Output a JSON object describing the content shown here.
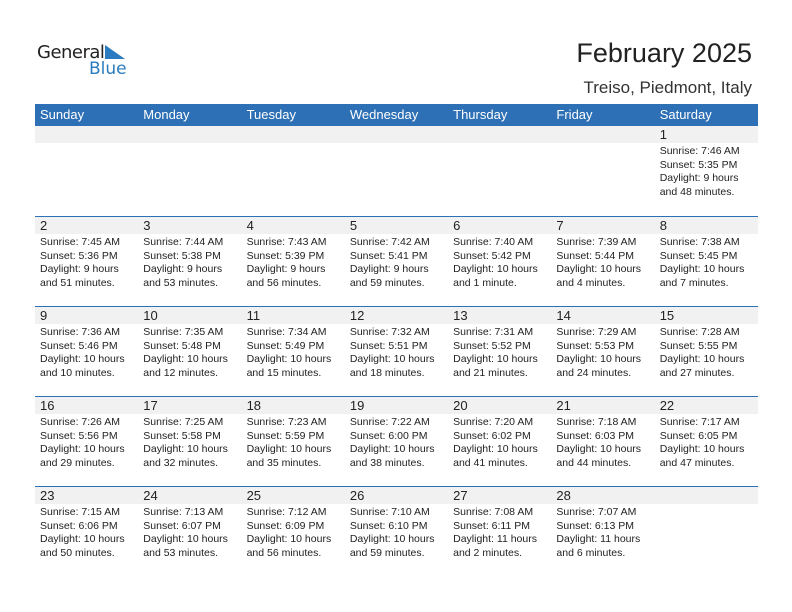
{
  "logo": {
    "word1": "General",
    "word2": "Blue"
  },
  "title": "February 2025",
  "location": "Treiso, Piedmont, Italy",
  "days": [
    "Sunday",
    "Monday",
    "Tuesday",
    "Wednesday",
    "Thursday",
    "Friday",
    "Saturday"
  ],
  "weeks": [
    [
      null,
      null,
      null,
      null,
      null,
      null,
      {
        "day": "1",
        "sunrise": "Sunrise: 7:46 AM",
        "sunset": "Sunset: 5:35 PM",
        "daylight1": "Daylight: 9 hours",
        "daylight2": "and 48 minutes."
      }
    ],
    [
      {
        "day": "2",
        "sunrise": "Sunrise: 7:45 AM",
        "sunset": "Sunset: 5:36 PM",
        "daylight1": "Daylight: 9 hours",
        "daylight2": "and 51 minutes."
      },
      {
        "day": "3",
        "sunrise": "Sunrise: 7:44 AM",
        "sunset": "Sunset: 5:38 PM",
        "daylight1": "Daylight: 9 hours",
        "daylight2": "and 53 minutes."
      },
      {
        "day": "4",
        "sunrise": "Sunrise: 7:43 AM",
        "sunset": "Sunset: 5:39 PM",
        "daylight1": "Daylight: 9 hours",
        "daylight2": "and 56 minutes."
      },
      {
        "day": "5",
        "sunrise": "Sunrise: 7:42 AM",
        "sunset": "Sunset: 5:41 PM",
        "daylight1": "Daylight: 9 hours",
        "daylight2": "and 59 minutes."
      },
      {
        "day": "6",
        "sunrise": "Sunrise: 7:40 AM",
        "sunset": "Sunset: 5:42 PM",
        "daylight1": "Daylight: 10 hours",
        "daylight2": "and 1 minute."
      },
      {
        "day": "7",
        "sunrise": "Sunrise: 7:39 AM",
        "sunset": "Sunset: 5:44 PM",
        "daylight1": "Daylight: 10 hours",
        "daylight2": "and 4 minutes."
      },
      {
        "day": "8",
        "sunrise": "Sunrise: 7:38 AM",
        "sunset": "Sunset: 5:45 PM",
        "daylight1": "Daylight: 10 hours",
        "daylight2": "and 7 minutes."
      }
    ],
    [
      {
        "day": "9",
        "sunrise": "Sunrise: 7:36 AM",
        "sunset": "Sunset: 5:46 PM",
        "daylight1": "Daylight: 10 hours",
        "daylight2": "and 10 minutes."
      },
      {
        "day": "10",
        "sunrise": "Sunrise: 7:35 AM",
        "sunset": "Sunset: 5:48 PM",
        "daylight1": "Daylight: 10 hours",
        "daylight2": "and 12 minutes."
      },
      {
        "day": "11",
        "sunrise": "Sunrise: 7:34 AM",
        "sunset": "Sunset: 5:49 PM",
        "daylight1": "Daylight: 10 hours",
        "daylight2": "and 15 minutes."
      },
      {
        "day": "12",
        "sunrise": "Sunrise: 7:32 AM",
        "sunset": "Sunset: 5:51 PM",
        "daylight1": "Daylight: 10 hours",
        "daylight2": "and 18 minutes."
      },
      {
        "day": "13",
        "sunrise": "Sunrise: 7:31 AM",
        "sunset": "Sunset: 5:52 PM",
        "daylight1": "Daylight: 10 hours",
        "daylight2": "and 21 minutes."
      },
      {
        "day": "14",
        "sunrise": "Sunrise: 7:29 AM",
        "sunset": "Sunset: 5:53 PM",
        "daylight1": "Daylight: 10 hours",
        "daylight2": "and 24 minutes."
      },
      {
        "day": "15",
        "sunrise": "Sunrise: 7:28 AM",
        "sunset": "Sunset: 5:55 PM",
        "daylight1": "Daylight: 10 hours",
        "daylight2": "and 27 minutes."
      }
    ],
    [
      {
        "day": "16",
        "sunrise": "Sunrise: 7:26 AM",
        "sunset": "Sunset: 5:56 PM",
        "daylight1": "Daylight: 10 hours",
        "daylight2": "and 29 minutes."
      },
      {
        "day": "17",
        "sunrise": "Sunrise: 7:25 AM",
        "sunset": "Sunset: 5:58 PM",
        "daylight1": "Daylight: 10 hours",
        "daylight2": "and 32 minutes."
      },
      {
        "day": "18",
        "sunrise": "Sunrise: 7:23 AM",
        "sunset": "Sunset: 5:59 PM",
        "daylight1": "Daylight: 10 hours",
        "daylight2": "and 35 minutes."
      },
      {
        "day": "19",
        "sunrise": "Sunrise: 7:22 AM",
        "sunset": "Sunset: 6:00 PM",
        "daylight1": "Daylight: 10 hours",
        "daylight2": "and 38 minutes."
      },
      {
        "day": "20",
        "sunrise": "Sunrise: 7:20 AM",
        "sunset": "Sunset: 6:02 PM",
        "daylight1": "Daylight: 10 hours",
        "daylight2": "and 41 minutes."
      },
      {
        "day": "21",
        "sunrise": "Sunrise: 7:18 AM",
        "sunset": "Sunset: 6:03 PM",
        "daylight1": "Daylight: 10 hours",
        "daylight2": "and 44 minutes."
      },
      {
        "day": "22",
        "sunrise": "Sunrise: 7:17 AM",
        "sunset": "Sunset: 6:05 PM",
        "daylight1": "Daylight: 10 hours",
        "daylight2": "and 47 minutes."
      }
    ],
    [
      {
        "day": "23",
        "sunrise": "Sunrise: 7:15 AM",
        "sunset": "Sunset: 6:06 PM",
        "daylight1": "Daylight: 10 hours",
        "daylight2": "and 50 minutes."
      },
      {
        "day": "24",
        "sunrise": "Sunrise: 7:13 AM",
        "sunset": "Sunset: 6:07 PM",
        "daylight1": "Daylight: 10 hours",
        "daylight2": "and 53 minutes."
      },
      {
        "day": "25",
        "sunrise": "Sunrise: 7:12 AM",
        "sunset": "Sunset: 6:09 PM",
        "daylight1": "Daylight: 10 hours",
        "daylight2": "and 56 minutes."
      },
      {
        "day": "26",
        "sunrise": "Sunrise: 7:10 AM",
        "sunset": "Sunset: 6:10 PM",
        "daylight1": "Daylight: 10 hours",
        "daylight2": "and 59 minutes."
      },
      {
        "day": "27",
        "sunrise": "Sunrise: 7:08 AM",
        "sunset": "Sunset: 6:11 PM",
        "daylight1": "Daylight: 11 hours",
        "daylight2": "and 2 minutes."
      },
      {
        "day": "28",
        "sunrise": "Sunrise: 7:07 AM",
        "sunset": "Sunset: 6:13 PM",
        "daylight1": "Daylight: 11 hours",
        "daylight2": "and 6 minutes."
      },
      null
    ]
  ],
  "colors": {
    "header": "#2e70b5",
    "strip": "#f1f1f1",
    "brand": "#2a7bbf"
  }
}
